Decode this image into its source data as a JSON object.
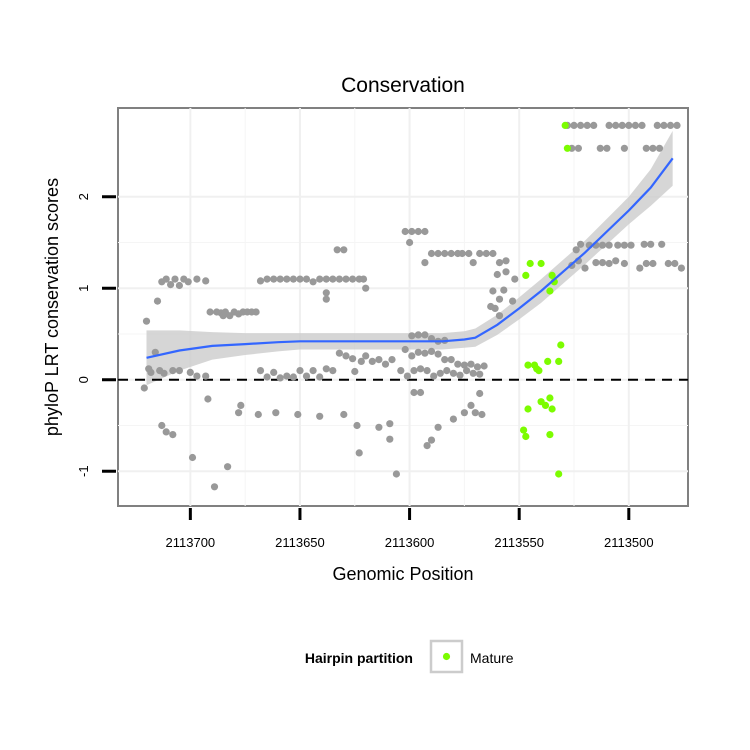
{
  "chart_data": {
    "type": "scatter",
    "title": "Conservation",
    "xlabel": "Genomic Position",
    "ylabel": "phyloP LRT conservation scores",
    "x_reversed": true,
    "xlim": [
      2113733,
      2113473
    ],
    "ylim": [
      -1.38,
      2.97
    ],
    "x_ticks": [
      2113700,
      2113650,
      2113600,
      2113550,
      2113500
    ],
    "x_tick_labels": [
      "2113700",
      "2113650",
      "2113600",
      "2113550",
      "2113500"
    ],
    "y_ticks": [
      -1,
      0,
      1,
      2
    ],
    "y_tick_labels": [
      "-1",
      "0",
      "1",
      "2"
    ],
    "reference_line": {
      "y": 0,
      "style": "dashed"
    },
    "legend": {
      "title": "Hairpin partition",
      "position": "bottom",
      "entries": [
        {
          "label": "Mature",
          "color": "#7cfc00"
        }
      ]
    },
    "colors": {
      "other": "#999999",
      "mature": "#7cfc00",
      "smooth": "#3366ff",
      "ribbon": "#cccccc",
      "panel_border": "#808080"
    },
    "series": [
      {
        "name": "Other",
        "points": [
          [
            2113720,
            0.64
          ],
          [
            2113719,
            0.12
          ],
          [
            2113718,
            0.08
          ],
          [
            2113716,
            0.3
          ],
          [
            2113721,
            -0.09
          ],
          [
            2113715,
            0.86
          ],
          [
            2113713,
            1.07
          ],
          [
            2113711,
            1.1
          ],
          [
            2113709,
            1.04
          ],
          [
            2113707,
            1.1
          ],
          [
            2113705,
            1.03
          ],
          [
            2113703,
            1.1
          ],
          [
            2113701,
            1.07
          ],
          [
            2113697,
            1.1
          ],
          [
            2113693,
            1.08
          ],
          [
            2113713,
            -0.5
          ],
          [
            2113711,
            -0.57
          ],
          [
            2113708,
            -0.6
          ],
          [
            2113714,
            0.1
          ],
          [
            2113712,
            0.07
          ],
          [
            2113708,
            0.1
          ],
          [
            2113705,
            0.1
          ],
          [
            2113700,
            0.08
          ],
          [
            2113697,
            0.04
          ],
          [
            2113693,
            0.04
          ],
          [
            2113692,
            -0.21
          ],
          [
            2113699,
            -0.85
          ],
          [
            2113689,
            -1.17
          ],
          [
            2113683,
            -0.95
          ],
          [
            2113691,
            0.74
          ],
          [
            2113688,
            0.74
          ],
          [
            2113686,
            0.73
          ],
          [
            2113685,
            0.7
          ],
          [
            2113684,
            0.74
          ],
          [
            2113682,
            0.7
          ],
          [
            2113680,
            0.74
          ],
          [
            2113678,
            0.72
          ],
          [
            2113676,
            0.74
          ],
          [
            2113674,
            0.74
          ],
          [
            2113672,
            0.74
          ],
          [
            2113670,
            0.74
          ],
          [
            2113677,
            -0.28
          ],
          [
            2113678,
            -0.36
          ],
          [
            2113668,
            1.08
          ],
          [
            2113665,
            1.1
          ],
          [
            2113662,
            1.1
          ],
          [
            2113659,
            1.1
          ],
          [
            2113656,
            1.1
          ],
          [
            2113653,
            1.1
          ],
          [
            2113650,
            1.1
          ],
          [
            2113647,
            1.1
          ],
          [
            2113644,
            1.07
          ],
          [
            2113641,
            1.1
          ],
          [
            2113638,
            1.1
          ],
          [
            2113635,
            1.1
          ],
          [
            2113632,
            1.1
          ],
          [
            2113629,
            1.1
          ],
          [
            2113626,
            1.1
          ],
          [
            2113623,
            1.1
          ],
          [
            2113638,
            0.95
          ],
          [
            2113638,
            0.88
          ],
          [
            2113668,
            0.1
          ],
          [
            2113665,
            0.03
          ],
          [
            2113662,
            0.08
          ],
          [
            2113659,
            0.02
          ],
          [
            2113656,
            0.04
          ],
          [
            2113653,
            0.03
          ],
          [
            2113650,
            0.1
          ],
          [
            2113647,
            0.04
          ],
          [
            2113644,
            0.1
          ],
          [
            2113641,
            0.03
          ],
          [
            2113638,
            0.12
          ],
          [
            2113635,
            0.1
          ],
          [
            2113669,
            -0.38
          ],
          [
            2113661,
            -0.36
          ],
          [
            2113651,
            -0.38
          ],
          [
            2113641,
            -0.4
          ],
          [
            2113630,
            -0.38
          ],
          [
            2113633,
            1.42
          ],
          [
            2113630,
            1.42
          ],
          [
            2113621,
            1.1
          ],
          [
            2113620,
            1.0
          ],
          [
            2113632,
            0.29
          ],
          [
            2113629,
            0.26
          ],
          [
            2113626,
            0.23
          ],
          [
            2113625,
            0.09
          ],
          [
            2113622,
            0.2
          ],
          [
            2113620,
            0.26
          ],
          [
            2113617,
            0.2
          ],
          [
            2113614,
            0.22
          ],
          [
            2113611,
            0.17
          ],
          [
            2113608,
            0.22
          ],
          [
            2113624,
            -0.5
          ],
          [
            2113623,
            -0.8
          ],
          [
            2113614,
            -0.52
          ],
          [
            2113609,
            -0.48
          ],
          [
            2113609,
            -0.65
          ],
          [
            2113606,
            -1.03
          ],
          [
            2113602,
            1.62
          ],
          [
            2113599,
            1.62
          ],
          [
            2113596,
            1.62
          ],
          [
            2113593,
            1.62
          ],
          [
            2113600,
            1.5
          ],
          [
            2113599,
            0.48
          ],
          [
            2113596,
            0.49
          ],
          [
            2113593,
            0.49
          ],
          [
            2113590,
            0.45
          ],
          [
            2113587,
            0.42
          ],
          [
            2113584,
            0.43
          ],
          [
            2113602,
            0.33
          ],
          [
            2113599,
            0.26
          ],
          [
            2113596,
            0.3
          ],
          [
            2113593,
            0.29
          ],
          [
            2113590,
            0.31
          ],
          [
            2113587,
            0.28
          ],
          [
            2113584,
            0.22
          ],
          [
            2113581,
            0.22
          ],
          [
            2113578,
            0.17
          ],
          [
            2113575,
            0.16
          ],
          [
            2113572,
            0.17
          ],
          [
            2113569,
            0.14
          ],
          [
            2113566,
            0.15
          ],
          [
            2113604,
            0.1
          ],
          [
            2113601,
            0.04
          ],
          [
            2113598,
            0.1
          ],
          [
            2113595,
            0.12
          ],
          [
            2113592,
            0.1
          ],
          [
            2113589,
            0.04
          ],
          [
            2113586,
            0.07
          ],
          [
            2113583,
            0.1
          ],
          [
            2113580,
            0.07
          ],
          [
            2113577,
            0.05
          ],
          [
            2113574,
            0.1
          ],
          [
            2113571,
            0.07
          ],
          [
            2113568,
            0.06
          ],
          [
            2113598,
            -0.14
          ],
          [
            2113595,
            -0.14
          ],
          [
            2113592,
            -0.72
          ],
          [
            2113590,
            -0.66
          ],
          [
            2113587,
            -0.52
          ],
          [
            2113580,
            -0.43
          ],
          [
            2113575,
            -0.36
          ],
          [
            2113572,
            -0.28
          ],
          [
            2113570,
            -0.36
          ],
          [
            2113567,
            -0.38
          ],
          [
            2113568,
            -0.15
          ],
          [
            2113593,
            1.28
          ],
          [
            2113590,
            1.38
          ],
          [
            2113587,
            1.38
          ],
          [
            2113584,
            1.38
          ],
          [
            2113581,
            1.38
          ],
          [
            2113578,
            1.38
          ],
          [
            2113576,
            1.38
          ],
          [
            2113573,
            1.38
          ],
          [
            2113571,
            1.28
          ],
          [
            2113568,
            1.38
          ],
          [
            2113565,
            1.38
          ],
          [
            2113562,
            1.38
          ],
          [
            2113559,
            1.28
          ],
          [
            2113556,
            1.3
          ],
          [
            2113562,
            0.97
          ],
          [
            2113560,
            1.15
          ],
          [
            2113559,
            0.88
          ],
          [
            2113557,
            0.98
          ],
          [
            2113556,
            1.18
          ],
          [
            2113553,
            0.86
          ],
          [
            2113552,
            1.1
          ],
          [
            2113563,
            0.8
          ],
          [
            2113561,
            0.78
          ],
          [
            2113559,
            0.7
          ],
          [
            2113528,
            2.78
          ],
          [
            2113525,
            2.78
          ],
          [
            2113522,
            2.78
          ],
          [
            2113519,
            2.78
          ],
          [
            2113516,
            2.78
          ],
          [
            2113509,
            2.78
          ],
          [
            2113506,
            2.78
          ],
          [
            2113503,
            2.78
          ],
          [
            2113500,
            2.78
          ],
          [
            2113497,
            2.78
          ],
          [
            2113494,
            2.78
          ],
          [
            2113487,
            2.78
          ],
          [
            2113484,
            2.78
          ],
          [
            2113481,
            2.78
          ],
          [
            2113478,
            2.78
          ],
          [
            2113526,
            2.53
          ],
          [
            2113523,
            2.53
          ],
          [
            2113513,
            2.53
          ],
          [
            2113510,
            2.53
          ],
          [
            2113502,
            2.53
          ],
          [
            2113492,
            2.53
          ],
          [
            2113489,
            2.53
          ],
          [
            2113486,
            2.53
          ],
          [
            2113524,
            1.42
          ],
          [
            2113522,
            1.48
          ],
          [
            2113518,
            1.47
          ],
          [
            2113515,
            1.47
          ],
          [
            2113512,
            1.47
          ],
          [
            2113509,
            1.47
          ],
          [
            2113505,
            1.47
          ],
          [
            2113502,
            1.47
          ],
          [
            2113499,
            1.47
          ],
          [
            2113493,
            1.48
          ],
          [
            2113490,
            1.48
          ],
          [
            2113485,
            1.48
          ],
          [
            2113526,
            1.25
          ],
          [
            2113523,
            1.3
          ],
          [
            2113520,
            1.22
          ],
          [
            2113515,
            1.28
          ],
          [
            2113512,
            1.28
          ],
          [
            2113509,
            1.27
          ],
          [
            2113506,
            1.3
          ],
          [
            2113502,
            1.27
          ],
          [
            2113495,
            1.22
          ],
          [
            2113492,
            1.27
          ],
          [
            2113489,
            1.27
          ],
          [
            2113482,
            1.27
          ],
          [
            2113479,
            1.27
          ],
          [
            2113476,
            1.22
          ]
        ]
      },
      {
        "name": "Mature",
        "points": [
          [
            2113529,
            2.78
          ],
          [
            2113528,
            2.53
          ],
          [
            2113545,
            1.27
          ],
          [
            2113540,
            1.27
          ],
          [
            2113547,
            1.14
          ],
          [
            2113535,
            1.14
          ],
          [
            2113534,
            1.07
          ],
          [
            2113536,
            0.97
          ],
          [
            2113546,
            0.16
          ],
          [
            2113543,
            0.16
          ],
          [
            2113541,
            0.1
          ],
          [
            2113542,
            0.12
          ],
          [
            2113537,
            0.2
          ],
          [
            2113532,
            0.2
          ],
          [
            2113531,
            0.38
          ],
          [
            2113548,
            -0.55
          ],
          [
            2113547,
            -0.62
          ],
          [
            2113546,
            -0.32
          ],
          [
            2113540,
            -0.24
          ],
          [
            2113538,
            -0.28
          ],
          [
            2113536,
            -0.2
          ],
          [
            2113535,
            -0.32
          ],
          [
            2113536,
            -0.6
          ],
          [
            2113532,
            -1.03
          ]
        ]
      }
    ],
    "smooth_curve": [
      [
        2113720,
        0.24
      ],
      [
        2113705,
        0.32
      ],
      [
        2113690,
        0.37
      ],
      [
        2113675,
        0.39
      ],
      [
        2113660,
        0.41
      ],
      [
        2113650,
        0.42
      ],
      [
        2113630,
        0.42
      ],
      [
        2113610,
        0.42
      ],
      [
        2113595,
        0.42
      ],
      [
        2113585,
        0.42
      ],
      [
        2113575,
        0.44
      ],
      [
        2113570,
        0.46
      ],
      [
        2113560,
        0.6
      ],
      [
        2113550,
        0.78
      ],
      [
        2113540,
        0.97
      ],
      [
        2113530,
        1.18
      ],
      [
        2113520,
        1.39
      ],
      [
        2113510,
        1.62
      ],
      [
        2113500,
        1.85
      ],
      [
        2113490,
        2.1
      ],
      [
        2113480,
        2.42
      ]
    ],
    "smooth_band_halfwidth": [
      0.3,
      0.22,
      0.15,
      0.12,
      0.1,
      0.09,
      0.09,
      0.09,
      0.09,
      0.09,
      0.09,
      0.1,
      0.11,
      0.12,
      0.13,
      0.13,
      0.13,
      0.14,
      0.15,
      0.2,
      0.3
    ]
  }
}
